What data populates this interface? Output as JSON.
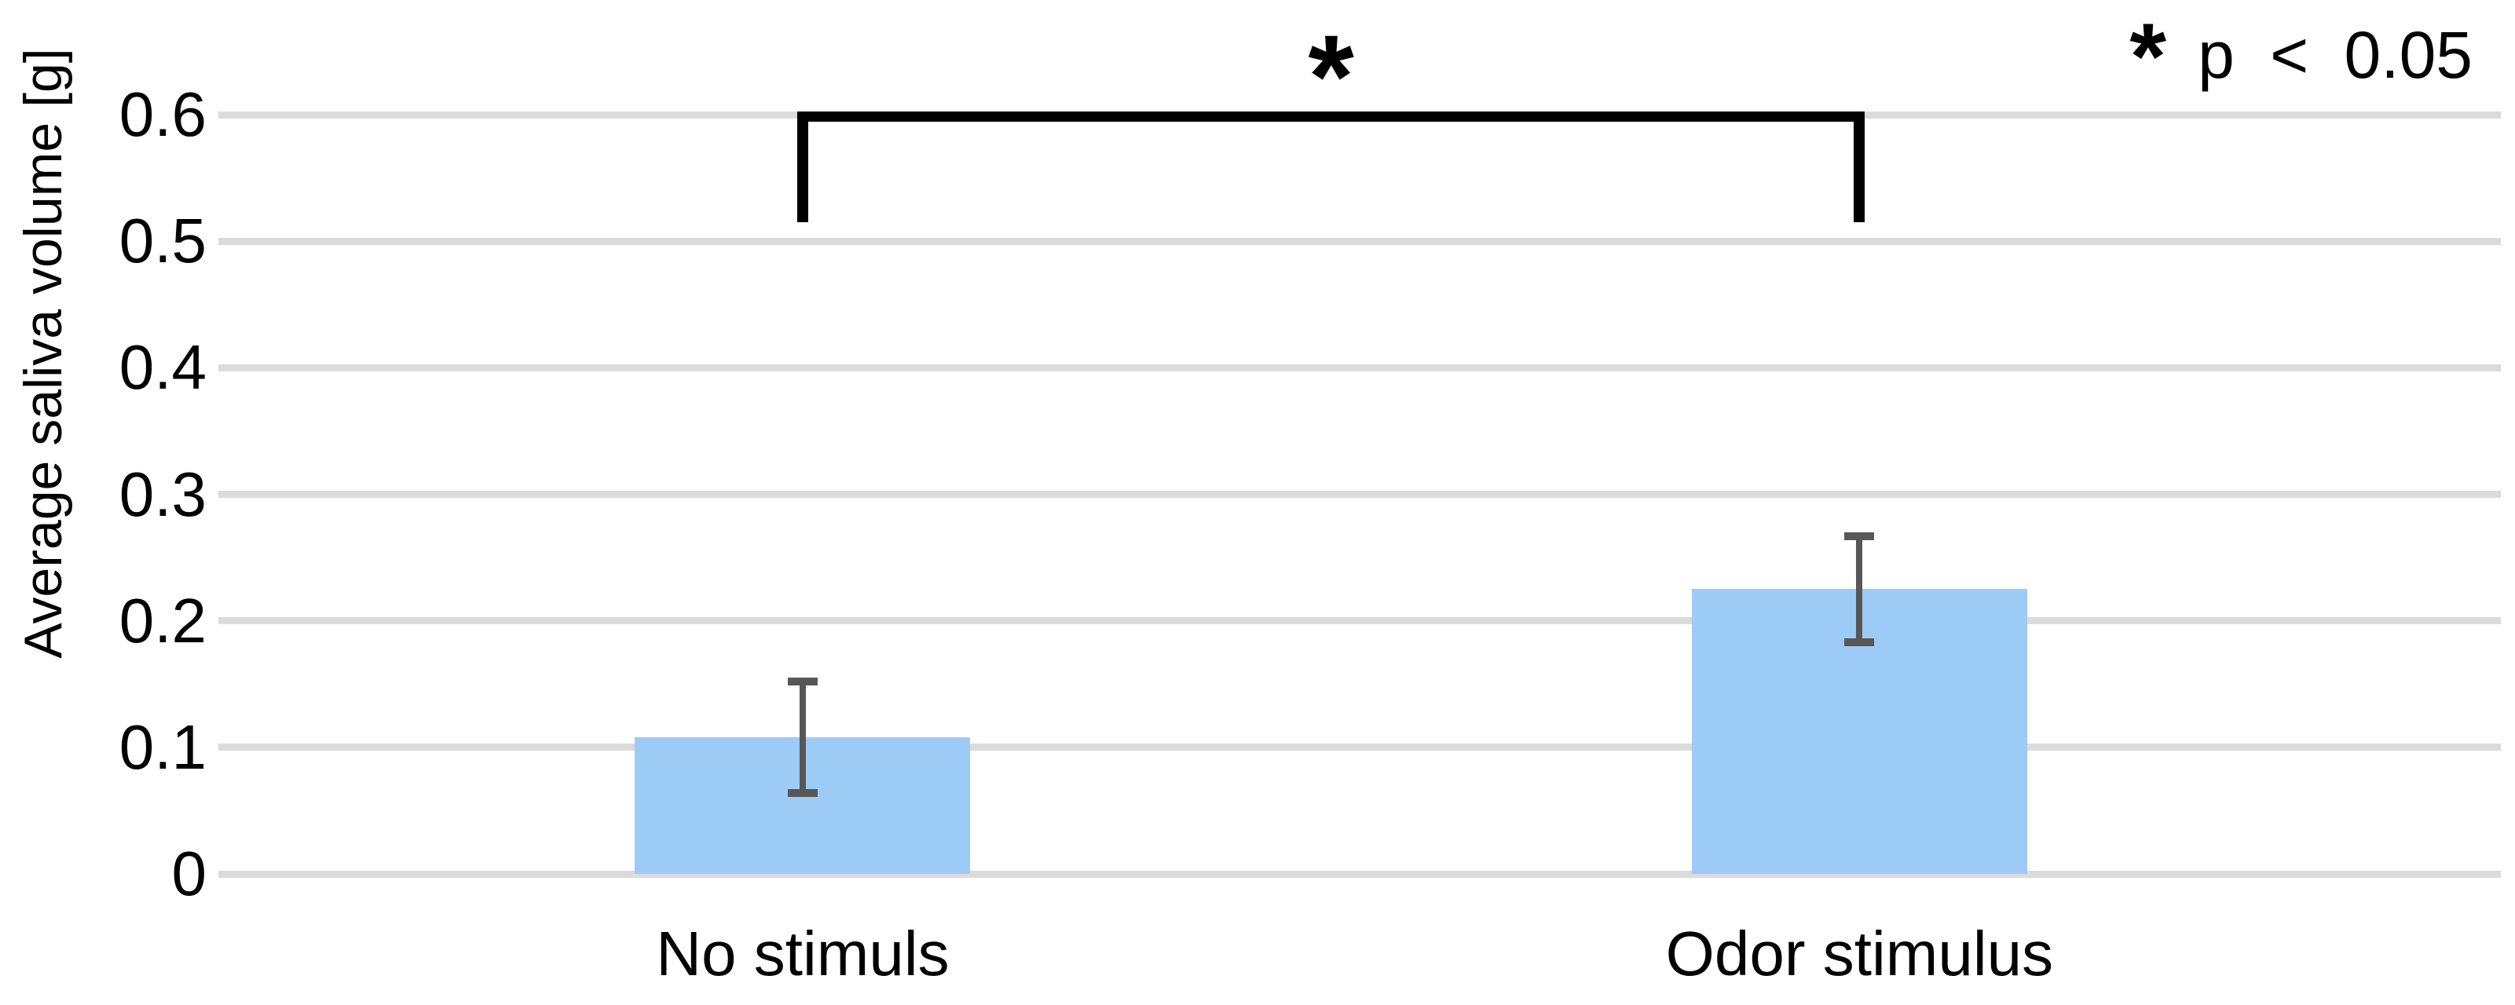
{
  "figure": {
    "background_color": "#FFFFFF"
  },
  "chart_data": {
    "type": "bar",
    "title": "",
    "xlabel": "",
    "ylabel": "Average saliva volume [g]",
    "categories": [
      "No stimuls",
      "Odor stimulus"
    ],
    "values": [
      0.108,
      0.225
    ],
    "errors": [
      0.044,
      0.042
    ],
    "ylim": [
      0,
      0.6
    ],
    "yticks": [
      {
        "label": "0",
        "value": 0
      },
      {
        "label": "0.1",
        "value": 0.1
      },
      {
        "label": "0.2",
        "value": 0.2
      },
      {
        "label": "0.3",
        "value": 0.3
      },
      {
        "label": "0.4",
        "value": 0.4
      },
      {
        "label": "0.5",
        "value": 0.5
      },
      {
        "label": "0.6",
        "value": 0.6
      }
    ],
    "grid": true,
    "gridline_color": "#DBDBDB",
    "bar_color": "#9CCBF6",
    "error_bar_color": "#575757",
    "significance": {
      "marker": "*",
      "from_category": "No stimuls",
      "to_category": "Odor stimulus",
      "bracket_color": "#000000",
      "bracket_top_value": 0.6,
      "bracket_leg_bottom_value": 0.515
    },
    "legend": {
      "marker": "*",
      "text": "p < 0.05",
      "position": "top-right"
    }
  }
}
